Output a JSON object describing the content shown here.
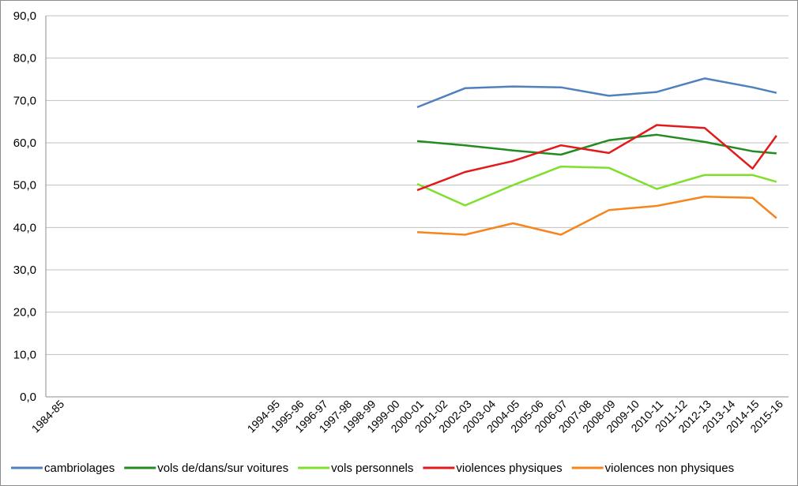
{
  "chart_data": {
    "type": "line",
    "title": "",
    "xlabel": "",
    "ylabel": "",
    "ylim": [
      0,
      90
    ],
    "yticks": [
      "0,0",
      "10,0",
      "20,0",
      "30,0",
      "40,0",
      "50,0",
      "60,0",
      "70,0",
      "80,0",
      "90,0"
    ],
    "categories": [
      "1984-85",
      "",
      "",
      "",
      "",
      "",
      "",
      "",
      "",
      "1994-95",
      "1995-96",
      "1996-97",
      "1997-98",
      "1998-99",
      "1999-00",
      "2000-01",
      "2001-02",
      "2002-03",
      "2003-04",
      "2004-05",
      "2005-06",
      "2006-07",
      "2007-08",
      "2008-09",
      "2009-10",
      "2010-11",
      "2011-12",
      "2012-13",
      "2013-14",
      "2014-15",
      "2015-16"
    ],
    "grid": true,
    "legend_position": "bottom",
    "series": [
      {
        "name": "cambriolages",
        "color": "#4f81bd",
        "values": [
          null,
          null,
          null,
          null,
          null,
          null,
          null,
          null,
          null,
          null,
          null,
          null,
          null,
          null,
          null,
          68.4,
          null,
          72.9,
          null,
          73.3,
          null,
          73.1,
          null,
          71.1,
          null,
          72.0,
          null,
          75.2,
          null,
          73.1,
          71.8
        ]
      },
      {
        "name": "vols de/dans/sur voitures",
        "color": "#228b22",
        "values": [
          null,
          null,
          null,
          null,
          null,
          null,
          null,
          null,
          null,
          null,
          null,
          null,
          null,
          null,
          null,
          60.4,
          null,
          59.4,
          null,
          58.2,
          null,
          57.2,
          null,
          60.6,
          null,
          61.9,
          null,
          60.2,
          null,
          58.0,
          57.5
        ]
      },
      {
        "name": "vols personnels",
        "color": "#7fe02b",
        "values": [
          null,
          null,
          null,
          null,
          null,
          null,
          null,
          null,
          null,
          null,
          null,
          null,
          null,
          null,
          null,
          50.3,
          null,
          45.2,
          null,
          50.0,
          null,
          54.4,
          null,
          54.1,
          null,
          49.1,
          null,
          52.4,
          null,
          52.4,
          50.8
        ]
      },
      {
        "name": "violences physiques",
        "color": "#e31a1c",
        "values": [
          null,
          null,
          null,
          null,
          null,
          null,
          null,
          null,
          null,
          null,
          null,
          null,
          null,
          null,
          null,
          48.8,
          null,
          53.1,
          null,
          55.7,
          null,
          59.4,
          null,
          57.6,
          null,
          64.2,
          null,
          63.5,
          null,
          53.9,
          61.7
        ]
      },
      {
        "name": "violences non physiques",
        "color": "#f7851e",
        "values": [
          null,
          null,
          null,
          null,
          null,
          null,
          null,
          null,
          null,
          null,
          null,
          null,
          null,
          null,
          null,
          38.9,
          null,
          38.3,
          null,
          41.0,
          null,
          38.3,
          null,
          44.1,
          null,
          45.1,
          null,
          47.3,
          null,
          47.0,
          42.2
        ]
      }
    ]
  }
}
